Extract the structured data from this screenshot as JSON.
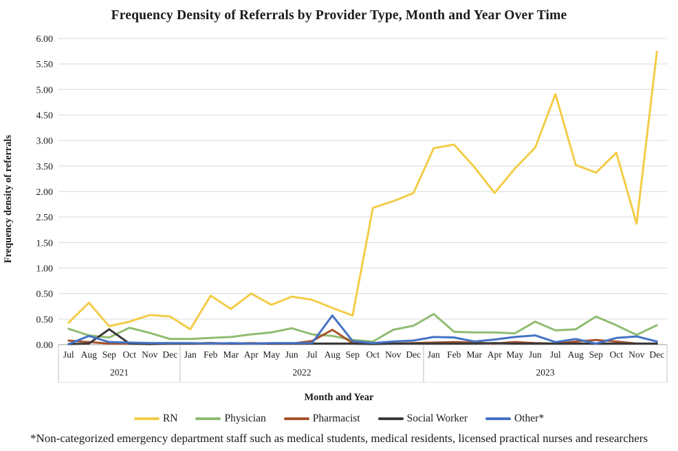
{
  "chart": {
    "title": "Frequency Density of Referrals by Provider Type, Month and Year Over Time",
    "y_axis_title": "Frequency density of referrals",
    "x_axis_title": "Month and Year",
    "footnote": "*Non-categorized emergency department staff such as medical students, medical residents, licensed practical nurses and researchers"
  },
  "chart_data": {
    "type": "line",
    "title": "Frequency Density of Referrals by Provider Type, Month and Year Over Time",
    "xlabel": "Month and Year",
    "ylabel": "Frequency density of referrals",
    "ylim": [
      0,
      6.0
    ],
    "grid": true,
    "legend_position": "bottom",
    "y_tick_labels_top_to_bottom": [
      "6.00",
      "5.50",
      "5.00",
      "4.50",
      "3.00",
      "3.50",
      "2.00",
      "2.50",
      "1.50",
      "1.00",
      "0.50",
      "0.50",
      "0.00"
    ],
    "categories": [
      "Jul",
      "Aug",
      "Sep",
      "Oct",
      "Nov",
      "Dec",
      "Jan",
      "Feb",
      "Mar",
      "Apr",
      "May",
      "Jun",
      "Jul",
      "Aug",
      "Sep",
      "Oct",
      "Nov",
      "Dec",
      "Jan",
      "Feb",
      "Mar",
      "Apr",
      "May",
      "Jun",
      "Jul",
      "Aug",
      "Sep",
      "Oct",
      "Nov",
      "Dec"
    ],
    "year_groups": [
      {
        "label": "2021",
        "months": 6
      },
      {
        "label": "2022",
        "months": 12
      },
      {
        "label": "2023",
        "months": 12
      }
    ],
    "series": [
      {
        "name": "RN",
        "color": "#F3CC47",
        "values": [
          0.43,
          0.82,
          0.36,
          0.45,
          0.58,
          0.55,
          0.3,
          0.96,
          0.7,
          1.0,
          0.78,
          0.94,
          0.88,
          0.72,
          0.57,
          2.68,
          2.81,
          2.97,
          3.85,
          3.92,
          3.48,
          2.97,
          3.45,
          3.86,
          4.91,
          3.52,
          3.37,
          3.76,
          2.37,
          5.74
        ]
      },
      {
        "name": "Physician",
        "color": "#8FBC70",
        "values": [
          0.31,
          0.18,
          0.14,
          0.33,
          0.23,
          0.11,
          0.11,
          0.13,
          0.15,
          0.2,
          0.24,
          0.32,
          0.2,
          0.17,
          0.09,
          0.06,
          0.29,
          0.37,
          0.6,
          0.25,
          0.24,
          0.24,
          0.22,
          0.45,
          0.28,
          0.3,
          0.55,
          0.38,
          0.19,
          0.38
        ]
      },
      {
        "name": "Pharmacist",
        "color": "#A5532C",
        "values": [
          0.08,
          0.05,
          0.02,
          0.02,
          0.02,
          0.02,
          0.02,
          0.02,
          0.02,
          0.03,
          0.02,
          0.02,
          0.07,
          0.29,
          0.03,
          0.02,
          0.02,
          0.03,
          0.04,
          0.05,
          0.04,
          0.02,
          0.05,
          0.03,
          0.02,
          0.06,
          0.09,
          0.06,
          0.02,
          0.02
        ]
      },
      {
        "name": "Social Worker",
        "color": "#3B3838",
        "values": [
          0.01,
          0.02,
          0.3,
          0.02,
          0.01,
          0.02,
          0.02,
          0.03,
          0.02,
          0.02,
          0.02,
          0.02,
          0.02,
          0.02,
          0.02,
          0.01,
          0.02,
          0.02,
          0.02,
          0.02,
          0.02,
          0.03,
          0.02,
          0.02,
          0.02,
          0.02,
          0.02,
          0.02,
          0.02,
          0.02
        ]
      },
      {
        "name": "Other*",
        "color": "#4472C4",
        "values": [
          0.01,
          0.17,
          0.05,
          0.04,
          0.03,
          0.03,
          0.03,
          0.02,
          0.03,
          0.02,
          0.03,
          0.03,
          0.03,
          0.57,
          0.07,
          0.03,
          0.06,
          0.08,
          0.15,
          0.14,
          0.06,
          0.1,
          0.15,
          0.18,
          0.05,
          0.11,
          0.02,
          0.13,
          0.16,
          0.06
        ]
      }
    ],
    "footnote": "*Non-categorized emergency department staff such as medical students, medical residents, licensed practical nurses and researchers"
  },
  "colors": {
    "gridline": "#D9D9D9",
    "axis_line": "#9A9A9A",
    "separator": "#BFBFBF",
    "band_bottom": "#DCDCDC",
    "text": "#1A1A1A"
  }
}
